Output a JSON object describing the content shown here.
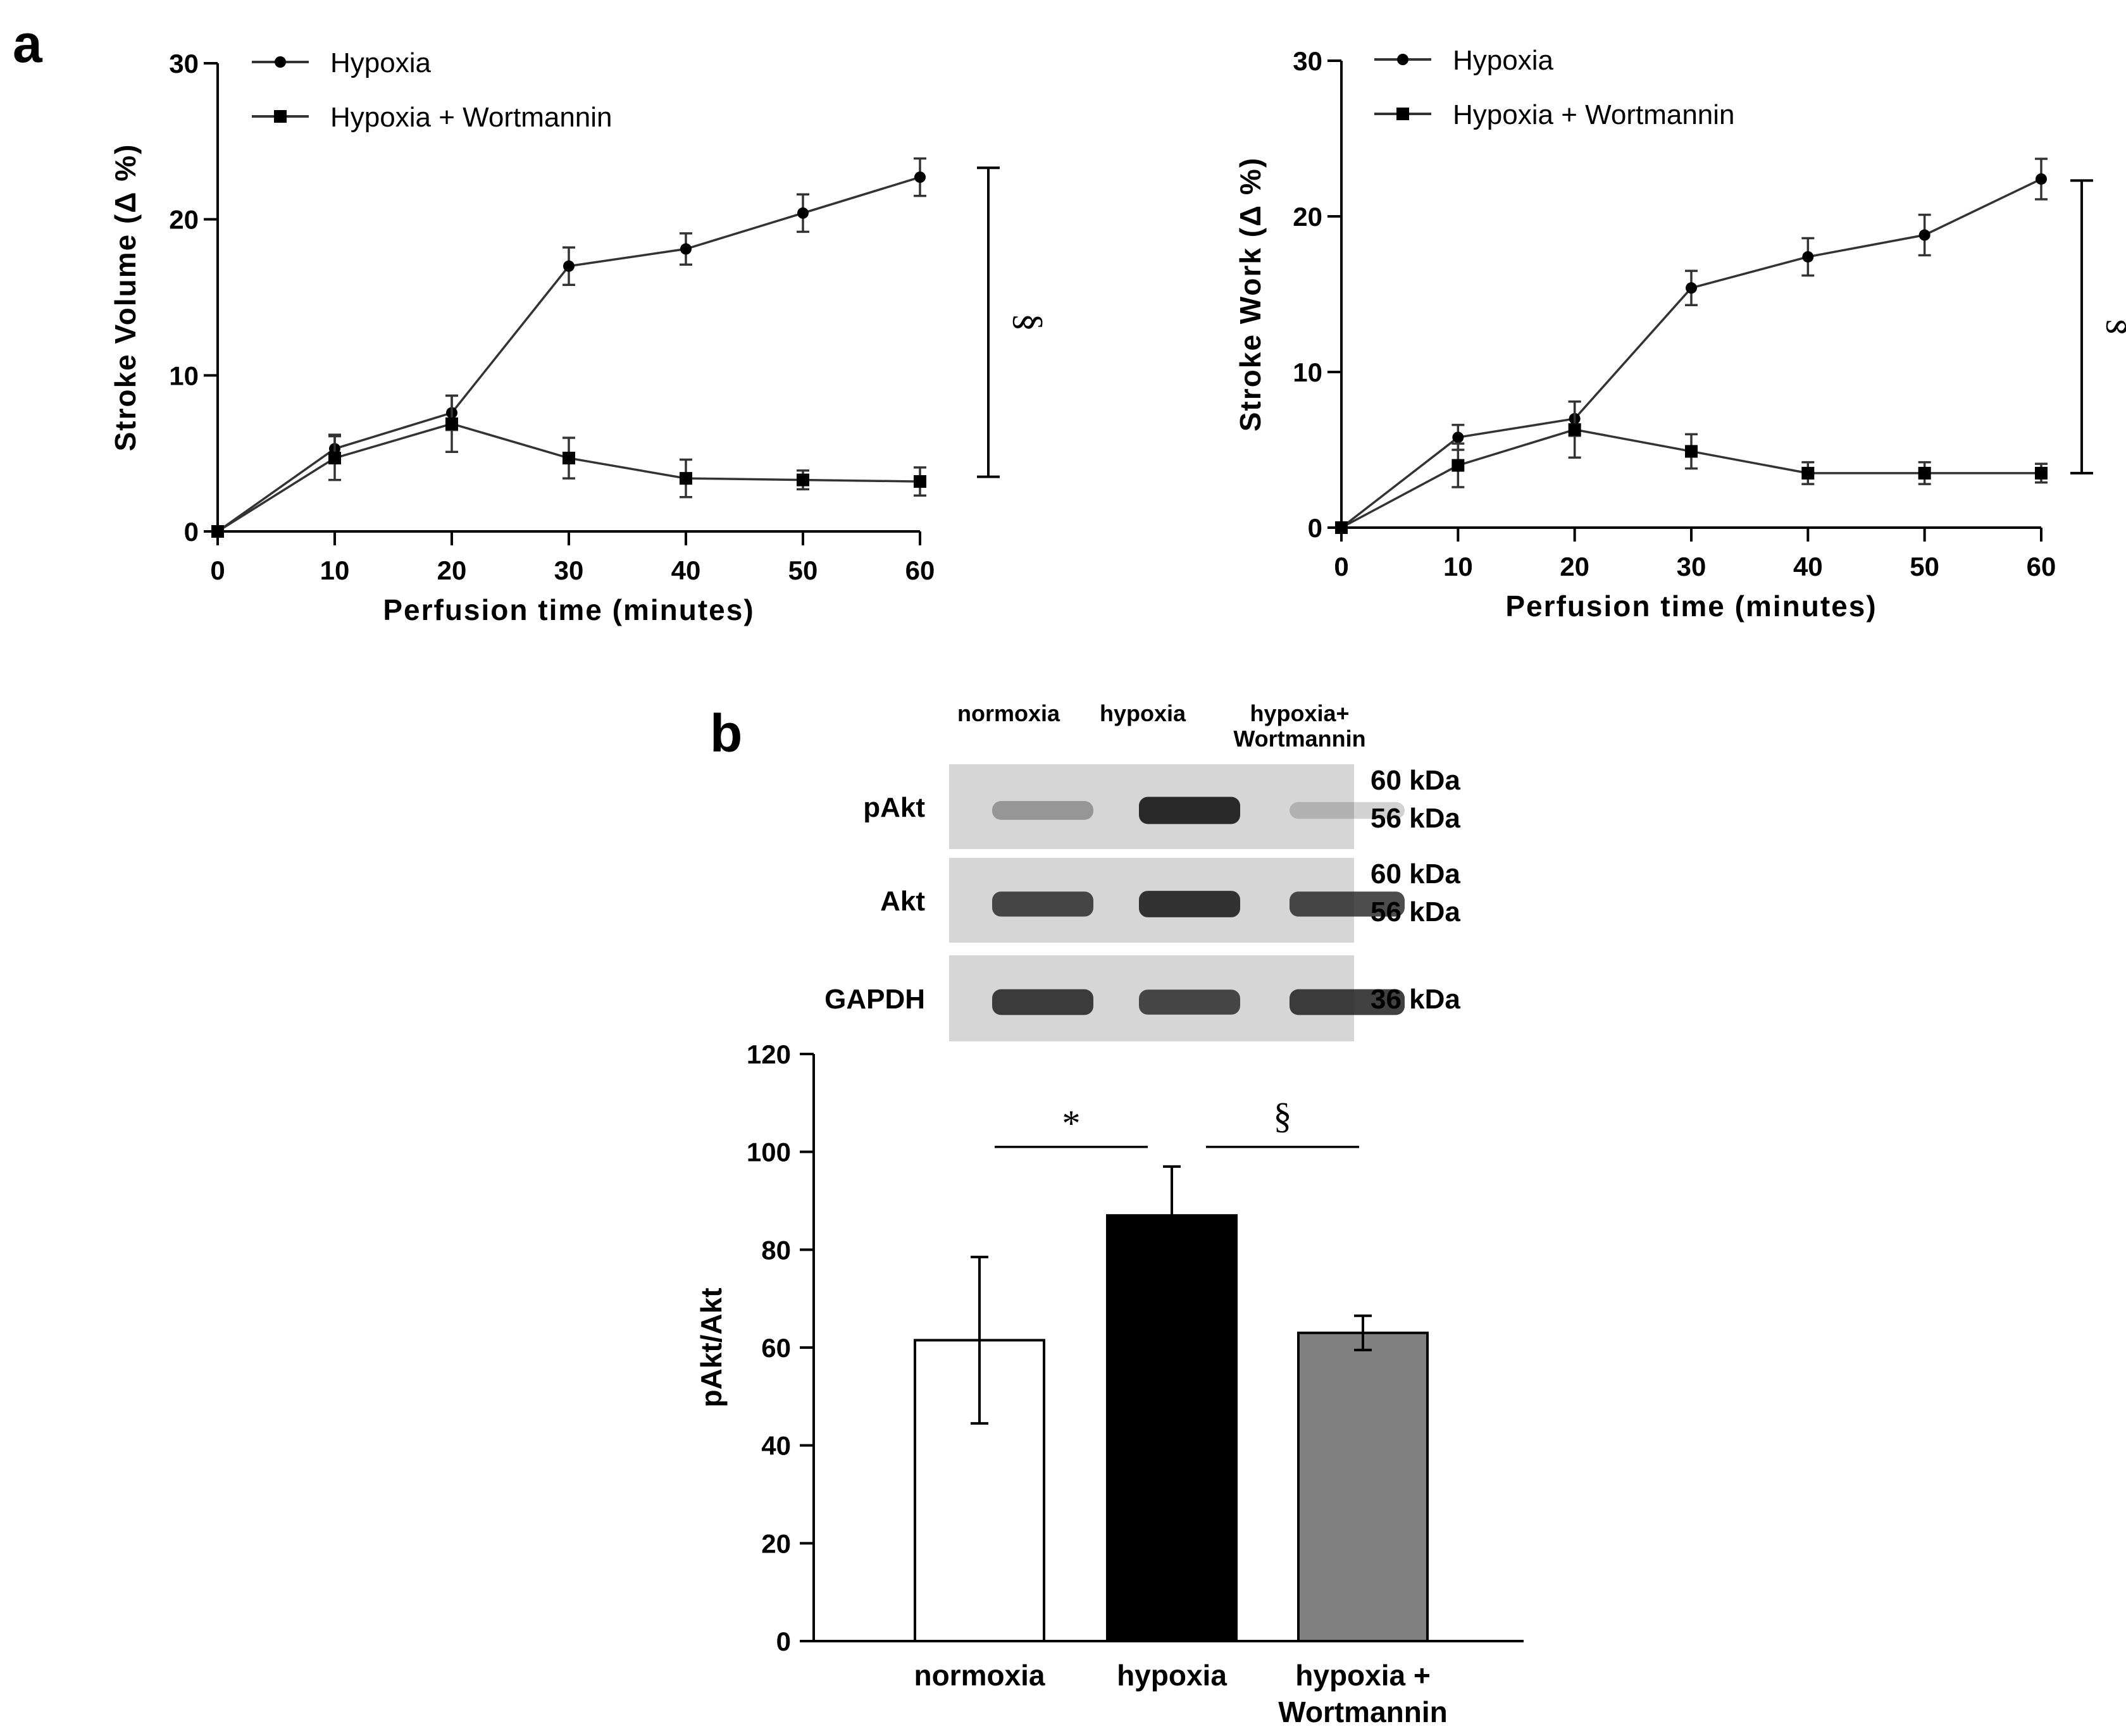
{
  "panel_labels": {
    "a": "a",
    "b": "b"
  },
  "chart_data": [
    {
      "type": "line",
      "ylabel": "Stroke Volume (Δ %)",
      "xlabel": "Perfusion time (minutes)",
      "x": [
        0,
        10,
        20,
        30,
        40,
        50,
        60
      ],
      "xlim": [
        0,
        60
      ],
      "ylim": [
        0,
        30
      ],
      "yticks": [
        0,
        10,
        20,
        30
      ],
      "series": [
        {
          "name": "Hypoxia",
          "marker": "circle",
          "values": [
            0,
            5.3,
            7.6,
            17.0,
            18.1,
            20.4,
            22.7
          ],
          "errors": [
            0,
            0.9,
            1.1,
            1.2,
            1.0,
            1.2,
            1.2
          ]
        },
        {
          "name": "Hypoxia + Wortmannin",
          "marker": "square",
          "values": [
            0,
            4.7,
            6.9,
            4.7,
            3.4,
            3.3,
            3.2
          ],
          "errors": [
            0,
            1.4,
            1.8,
            1.3,
            1.2,
            0.6,
            0.9
          ]
        }
      ],
      "significance": {
        "symbol": "§",
        "from": 3.5,
        "to": 23.3
      }
    },
    {
      "type": "line",
      "ylabel": "Stroke Work (Δ %)",
      "xlabel": "Perfusion time (minutes)",
      "x": [
        0,
        10,
        20,
        30,
        40,
        50,
        60
      ],
      "xlim": [
        0,
        60
      ],
      "ylim": [
        0,
        30
      ],
      "yticks": [
        0,
        10,
        20,
        30
      ],
      "series": [
        {
          "name": "Hypoxia",
          "marker": "circle",
          "values": [
            0,
            5.8,
            7.0,
            15.4,
            17.4,
            18.8,
            22.4
          ],
          "errors": [
            0,
            0.8,
            1.1,
            1.1,
            1.2,
            1.3,
            1.3
          ]
        },
        {
          "name": "Hypoxia + Wortmannin",
          "marker": "square",
          "values": [
            0,
            4.0,
            6.3,
            4.9,
            3.5,
            3.5,
            3.5
          ],
          "errors": [
            0,
            1.4,
            1.8,
            1.1,
            0.7,
            0.7,
            0.6
          ]
        }
      ],
      "significance": {
        "symbol": "§",
        "from": 3.5,
        "to": 22.3
      }
    },
    {
      "type": "bar",
      "ylabel": "pAkt/Akt",
      "xlabel": "",
      "categories": [
        "normoxia",
        "hypoxia",
        "hypoxia + Wortmannin"
      ],
      "values": [
        61.5,
        87,
        63
      ],
      "errors": [
        17,
        10,
        3.5
      ],
      "colors": [
        "#ffffff",
        "#000000",
        "#808080"
      ],
      "ylim": [
        0,
        120
      ],
      "yticks": [
        0,
        20,
        40,
        60,
        80,
        100,
        120
      ],
      "comparisons": [
        {
          "symbol": "*",
          "between": [
            "normoxia",
            "hypoxia"
          ]
        },
        {
          "symbol": "§",
          "between": [
            "hypoxia",
            "hypoxia + Wortmannin"
          ]
        }
      ]
    }
  ],
  "western_blot": {
    "lanes": [
      "normoxia",
      "hypoxia",
      "hypoxia+ Wortmannin"
    ],
    "rows": [
      {
        "label": "pAkt",
        "markers": [
          "60 kDa",
          "56 kDa"
        ],
        "band_intensity": [
          0.35,
          0.95,
          0.2
        ]
      },
      {
        "label": "Akt",
        "markers": [
          "60 kDa",
          "56 kDa"
        ],
        "band_intensity": [
          0.8,
          0.9,
          0.8
        ]
      },
      {
        "label": "GAPDH",
        "markers": [
          "36 kDa"
        ],
        "band_intensity": [
          0.85,
          0.8,
          0.85
        ]
      }
    ]
  },
  "colors": {
    "ink": "#000000",
    "line_series": "#333333",
    "blot_bg": "#d6d6d6",
    "band": "#202020"
  }
}
